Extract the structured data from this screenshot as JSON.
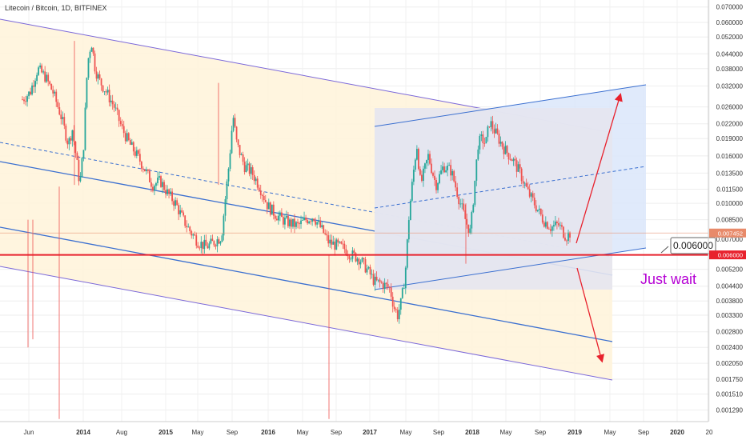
{
  "chart_data": {
    "type": "candlestick",
    "title": "Litecoin / Bitcoin, 1D, BITFINEX",
    "symbol": "LTC/BTC",
    "interval": "1D",
    "exchange": "BITFINEX",
    "x_tick_labels": [
      "Jun",
      "2014",
      "Aug",
      "2015",
      "May",
      "Sep",
      "2016",
      "May",
      "Sep",
      "2017",
      "May",
      "Sep",
      "2018",
      "May",
      "Sep",
      "2019",
      "May",
      "Sep",
      "2020",
      "20"
    ],
    "y_tick_labels": [
      "0.070000",
      "0.060000",
      "0.052000",
      "0.044000",
      "0.038000",
      "0.032000",
      "0.026000",
      "0.022000",
      "0.019000",
      "0.016000",
      "0.013500",
      "0.011500",
      "0.010000",
      "0.008500",
      "0.007000",
      "0.006000",
      "0.005200",
      "0.004400",
      "0.003800",
      "0.003300",
      "0.002800",
      "0.002400",
      "0.002050",
      "0.001750",
      "0.001510",
      "0.001290"
    ],
    "y_ticks": [
      0.07,
      0.06,
      0.052,
      0.044,
      0.038,
      0.032,
      0.026,
      0.022,
      0.019,
      0.016,
      0.0135,
      0.0115,
      0.01,
      0.0085,
      0.007,
      0.006,
      0.0052,
      0.0044,
      0.0038,
      0.0033,
      0.0028,
      0.0024,
      0.00205,
      0.00175,
      0.00151,
      0.00129
    ],
    "y_scale": "log",
    "ylim": [
      0.00115,
      0.075
    ],
    "price_path": [
      [
        0,
        0.028
      ],
      [
        0.01,
        0.03
      ],
      [
        0.02,
        0.038
      ],
      [
        0.03,
        0.035
      ],
      [
        0.04,
        0.03
      ],
      [
        0.05,
        0.024
      ],
      [
        0.06,
        0.018
      ],
      [
        0.065,
        0.021
      ],
      [
        0.07,
        0.016
      ],
      [
        0.075,
        0.012
      ],
      [
        0.08,
        0.018
      ],
      [
        0.085,
        0.04
      ],
      [
        0.09,
        0.05
      ],
      [
        0.095,
        0.038
      ],
      [
        0.1,
        0.034
      ],
      [
        0.11,
        0.03
      ],
      [
        0.12,
        0.026
      ],
      [
        0.13,
        0.021
      ],
      [
        0.14,
        0.018
      ],
      [
        0.15,
        0.016
      ],
      [
        0.16,
        0.014
      ],
      [
        0.17,
        0.012
      ],
      [
        0.18,
        0.0125
      ],
      [
        0.19,
        0.011
      ],
      [
        0.2,
        0.01
      ],
      [
        0.21,
        0.0085
      ],
      [
        0.22,
        0.0075
      ],
      [
        0.23,
        0.0068
      ],
      [
        0.24,
        0.0065
      ],
      [
        0.25,
        0.0068
      ],
      [
        0.26,
        0.0072
      ],
      [
        0.265,
        0.0105
      ],
      [
        0.27,
        0.015
      ],
      [
        0.275,
        0.024
      ],
      [
        0.28,
        0.018
      ],
      [
        0.29,
        0.0145
      ],
      [
        0.3,
        0.0135
      ],
      [
        0.31,
        0.0118
      ],
      [
        0.32,
        0.0098
      ],
      [
        0.33,
        0.009
      ],
      [
        0.34,
        0.0085
      ],
      [
        0.35,
        0.0082
      ],
      [
        0.36,
        0.008
      ],
      [
        0.37,
        0.0085
      ],
      [
        0.38,
        0.0088
      ],
      [
        0.39,
        0.0078
      ],
      [
        0.4,
        0.0068
      ],
      [
        0.41,
        0.0066
      ],
      [
        0.42,
        0.0064
      ],
      [
        0.43,
        0.006
      ],
      [
        0.44,
        0.0058
      ],
      [
        0.45,
        0.0052
      ],
      [
        0.46,
        0.0046
      ],
      [
        0.47,
        0.0045
      ],
      [
        0.48,
        0.0043
      ],
      [
        0.485,
        0.0036
      ],
      [
        0.49,
        0.0033
      ],
      [
        0.495,
        0.0038
      ],
      [
        0.5,
        0.005
      ],
      [
        0.505,
        0.009
      ],
      [
        0.51,
        0.013
      ],
      [
        0.515,
        0.018
      ],
      [
        0.52,
        0.012
      ],
      [
        0.53,
        0.016
      ],
      [
        0.54,
        0.012
      ],
      [
        0.55,
        0.0145
      ],
      [
        0.56,
        0.0138
      ],
      [
        0.57,
        0.0105
      ],
      [
        0.58,
        0.0082
      ],
      [
        0.585,
        0.0075
      ],
      [
        0.59,
        0.0115
      ],
      [
        0.595,
        0.018
      ],
      [
        0.6,
        0.019
      ],
      [
        0.605,
        0.018
      ],
      [
        0.61,
        0.0225
      ],
      [
        0.62,
        0.0195
      ],
      [
        0.63,
        0.017
      ],
      [
        0.64,
        0.0155
      ],
      [
        0.65,
        0.0135
      ],
      [
        0.66,
        0.0112
      ],
      [
        0.67,
        0.0098
      ],
      [
        0.68,
        0.0085
      ],
      [
        0.69,
        0.0079
      ],
      [
        0.7,
        0.0081
      ],
      [
        0.71,
        0.0072
      ],
      [
        0.715,
        0.00745
      ]
    ],
    "current_price": "0.007452",
    "current_price_value": 0.007452,
    "support_level": "0.006000",
    "support_level_value": 0.006,
    "callout_label": "0.006000",
    "annotation": "Just wait",
    "projections": [
      {
        "direction": "up",
        "target": 0.03
      },
      {
        "direction": "down",
        "target": 0.0021
      }
    ],
    "legend": "none",
    "grid": true,
    "colors": {
      "up_candle": "#26a69a",
      "down_candle": "#ef5350",
      "channel_fill": "#fff4dc",
      "channel_border": "#7b68d9",
      "midline": "#3a6fd0",
      "box_fill": "#e6e6ef",
      "projection_fill": "#dbe6fa",
      "support_line": "#e8222d",
      "arrow": "#e8222d",
      "annotation": "#b500d4",
      "price_tag": "#e88a6a"
    }
  }
}
